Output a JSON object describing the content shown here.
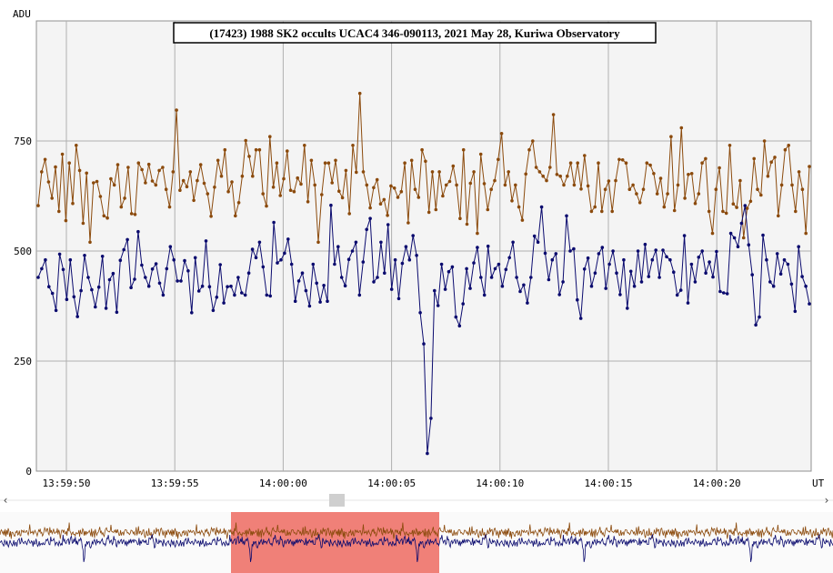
{
  "chart_data": {
    "type": "line",
    "title": "(17423) 1988 SK2 occults UCAC4 346-090113, 2021 May 28, Kuriwa Observatory",
    "ylabel": "ADU",
    "xlabel": "UT",
    "ylim": [
      0,
      1000
    ],
    "y_ticks": [
      "0",
      "250",
      "500",
      "750"
    ],
    "x_ticks": [
      "13:59:50",
      "13:59:55",
      "14:00:00",
      "14:00:05",
      "14:00:10",
      "14:00:15",
      "14:00:20"
    ],
    "grid": true,
    "series": [
      {
        "color": "#8b4a0c",
        "values": [
          603,
          680,
          708,
          657,
          620,
          691,
          590,
          720,
          569,
          700,
          608,
          740,
          683,
          563,
          677,
          520,
          655,
          658,
          624,
          580,
          575,
          664,
          650,
          696,
          600,
          620,
          690,
          585,
          583,
          700,
          685,
          655,
          697,
          659,
          650,
          683,
          690,
          640,
          600,
          680,
          820,
          638,
          660,
          646,
          680,
          615,
          660,
          696,
          654,
          630,
          579,
          645,
          706,
          670,
          730,
          635,
          657,
          580,
          610,
          670,
          751,
          715,
          670,
          730,
          730,
          630,
          602,
          760,
          645,
          700,
          626,
          664,
          727,
          638,
          635,
          666,
          652,
          740,
          612,
          706,
          650,
          520,
          628,
          700,
          700,
          655,
          706,
          636,
          621,
          683,
          585,
          740,
          679,
          858,
          680,
          650,
          598,
          644,
          662,
          607,
          617,
          581,
          648,
          643,
          622,
          635,
          700,
          564,
          706,
          640,
          622,
          730,
          704,
          588,
          680,
          594,
          680,
          625,
          650,
          658,
          693,
          650,
          574,
          730,
          561,
          654,
          680,
          540,
          720,
          653,
          594,
          640,
          660,
          708,
          767,
          650,
          680,
          614,
          650,
          600,
          570,
          675,
          730,
          750,
          690,
          680,
          670,
          660,
          690,
          810,
          674,
          670,
          650,
          670,
          700,
          650,
          700,
          641,
          717,
          648,
          590,
          600,
          700,
          590,
          640,
          659,
          590,
          660,
          708,
          707,
          700,
          640,
          650,
          630,
          610,
          640,
          700,
          695,
          676,
          630,
          665,
          600,
          630,
          760,
          592,
          650,
          780,
          620,
          674,
          676,
          608,
          630,
          700,
          710,
          590,
          540,
          640,
          689,
          590,
          586,
          740,
          607,
          599,
          660,
          530,
          597,
          613,
          710,
          640,
          627,
          750,
          670,
          702,
          713,
          580,
          650,
          730,
          740,
          650,
          590,
          680,
          640,
          540,
          692
        ]
      },
      {
        "color": "#0a0a6e",
        "values": [
          440,
          460,
          480,
          419,
          404,
          365,
          493,
          458,
          390,
          480,
          396,
          351,
          410,
          490,
          440,
          412,
          373,
          418,
          488,
          370,
          435,
          449,
          361,
          479,
          503,
          526,
          417,
          436,
          544,
          468,
          440,
          420,
          459,
          471,
          427,
          400,
          460,
          510,
          480,
          432,
          432,
          478,
          455,
          360,
          485,
          409,
          420,
          523,
          419,
          365,
          395,
          469,
          382,
          419,
          420,
          400,
          440,
          405,
          400,
          450,
          504,
          485,
          520,
          464,
          400,
          398,
          565,
          473,
          480,
          495,
          527,
          470,
          386,
          432,
          450,
          410,
          375,
          470,
          427,
          384,
          422,
          386,
          604,
          470,
          510,
          440,
          421,
          481,
          500,
          520,
          400,
          475,
          549,
          574,
          430,
          440,
          520,
          450,
          560,
          413,
          480,
          392,
          472,
          510,
          480,
          535,
          490,
          360,
          289,
          40,
          120,
          410,
          376,
          470,
          413,
          453,
          464,
          350,
          330,
          380,
          460,
          415,
          473,
          508,
          440,
          400,
          511,
          440,
          460,
          470,
          420,
          458,
          485,
          520,
          440,
          408,
          423,
          382,
          440,
          534,
          520,
          600,
          495,
          435,
          480,
          494,
          401,
          430,
          580,
          500,
          505,
          389,
          347,
          459,
          484,
          420,
          450,
          494,
          508,
          415,
          470,
          500,
          450,
          401,
          480,
          370,
          454,
          420,
          500,
          430,
          515,
          442,
          480,
          502,
          440,
          502,
          487,
          480,
          452,
          400,
          411,
          535,
          382,
          470,
          430,
          486,
          500,
          450,
          475,
          441,
          499,
          408,
          405,
          403,
          540,
          530,
          510,
          563,
          603,
          514,
          446,
          332,
          350,
          536,
          480,
          430,
          420,
          494,
          448,
          480,
          470,
          425,
          363,
          510,
          442,
          420,
          380
        ]
      }
    ]
  },
  "overview": {
    "label": "overview-strip"
  },
  "scrollbar": {
    "left_arrow": "‹",
    "right_arrow": "›"
  },
  "colors": {
    "plot_bg": "#f4f4f4",
    "grid": "#b0b0b0",
    "overview_bg": "#fafafa",
    "selection": "#f08078",
    "series1": "#8b4a0c",
    "series2": "#0a0a6e"
  }
}
